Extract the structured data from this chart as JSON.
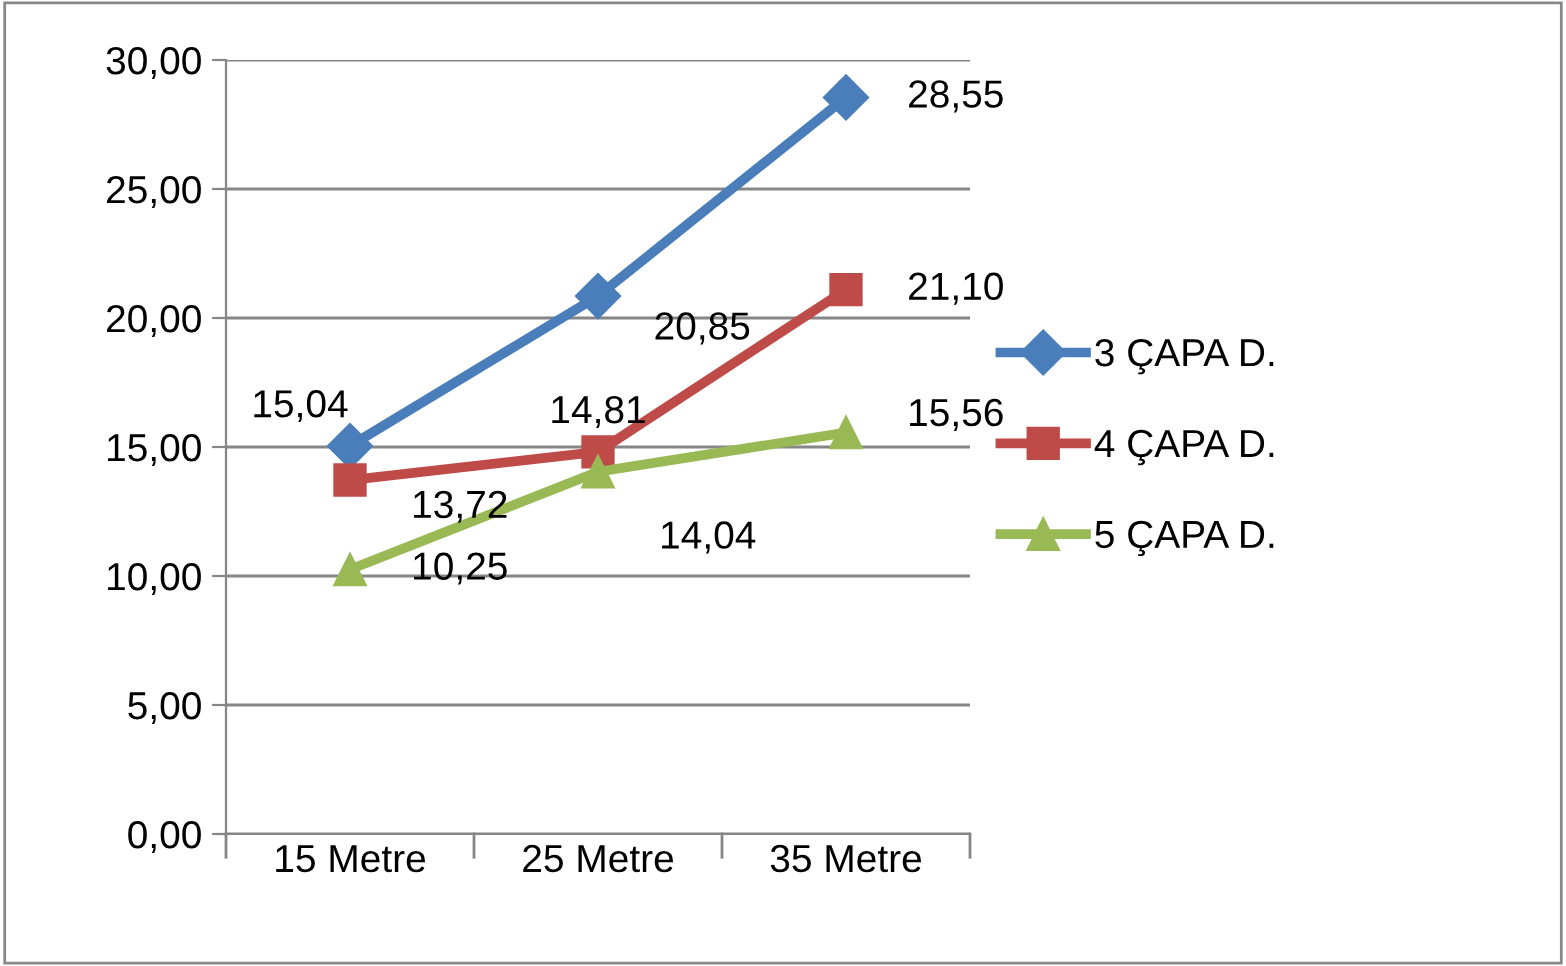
{
  "chart_data": {
    "type": "line",
    "categories": [
      "15 Metre",
      "25 Metre",
      "35 Metre"
    ],
    "ylim": [
      0,
      30
    ],
    "yticks": [
      {
        "value": 0,
        "label": "0,00"
      },
      {
        "value": 5,
        "label": "5,00"
      },
      {
        "value": 10,
        "label": "10,00"
      },
      {
        "value": 15,
        "label": "15,00"
      },
      {
        "value": 20,
        "label": "20,00"
      },
      {
        "value": 25,
        "label": "25,00"
      },
      {
        "value": 30,
        "label": "30,00"
      }
    ],
    "grid": "y",
    "legend": "right",
    "line_style": "solid",
    "series": [
      {
        "name": "3 ÇAPA D.",
        "color": "#4a7ebb",
        "marker": "diamond",
        "values": [
          15.04,
          20.85,
          28.55
        ],
        "value_labels": [
          "15,04",
          "20,85",
          "28,55"
        ]
      },
      {
        "name": "4 ÇAPA D.",
        "color": "#be4b48",
        "marker": "square",
        "values": [
          13.72,
          14.81,
          21.1
        ],
        "value_labels": [
          "13,72",
          "14,81",
          "21,10"
        ]
      },
      {
        "name": "5 ÇAPA D.",
        "color": "#98b954",
        "marker": "triangle",
        "values": [
          10.25,
          14.04,
          15.56
        ],
        "value_labels": [
          "10,25",
          "14,04",
          "15,56"
        ]
      }
    ]
  }
}
